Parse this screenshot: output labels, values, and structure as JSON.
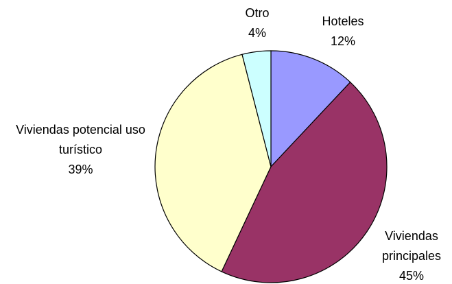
{
  "chart_data": {
    "type": "pie",
    "categories": [
      "Hoteles",
      "Viviendas principales",
      "Viviendas potencial uso turístico",
      "Otro"
    ],
    "values": [
      12,
      45,
      39,
      4
    ],
    "value_labels": [
      "12%",
      "45%",
      "39%",
      "4%"
    ],
    "colors": [
      "#9999ff",
      "#993366",
      "#ffffcc",
      "#ccffff"
    ]
  }
}
